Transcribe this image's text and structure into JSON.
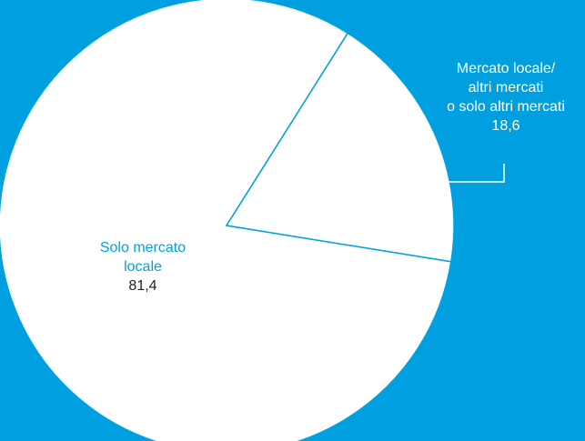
{
  "chart_data": {
    "type": "pie",
    "slices": [
      {
        "label_lines": [
          "Solo mercato",
          "locale"
        ],
        "value": 81.4,
        "value_text": "81,4"
      },
      {
        "label_lines": [
          "Mercato locale/",
          "altri mercati",
          "o solo altri mercati"
        ],
        "value": 18.6,
        "value_text": "18,6"
      }
    ],
    "colors": {
      "background": "#009fdf",
      "pie_fill": "#ffffff",
      "pie_stroke": "#00a3e0",
      "big_label_color": "#00a3e0",
      "small_label_color": "#ffffff",
      "big_value_color": "#222222"
    }
  }
}
